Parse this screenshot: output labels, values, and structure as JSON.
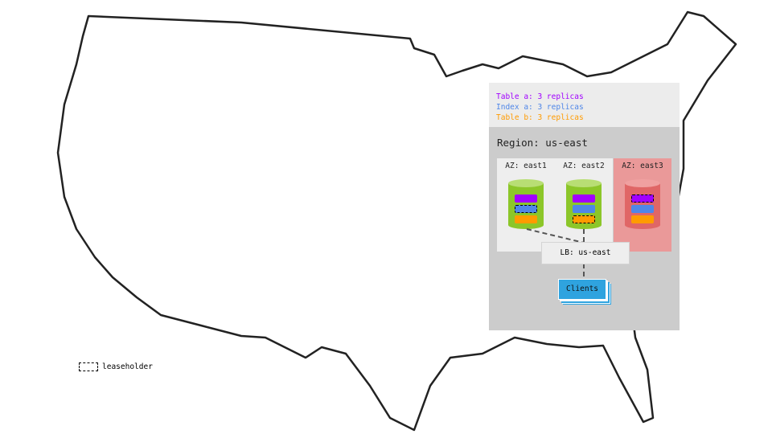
{
  "legend_top": [
    {
      "text": "Table a: 3 replicas",
      "color": "#a100ff"
    },
    {
      "text": "Index a: 3 replicas",
      "color": "#4f86e8"
    },
    {
      "text": "Table b: 3 replicas",
      "color": "#ff9b00"
    }
  ],
  "region": "Region: us-east",
  "azs": [
    {
      "label": "AZ: east1",
      "state": "healthy",
      "leaseholder": "Index a"
    },
    {
      "label": "AZ: east2",
      "state": "healthy",
      "leaseholder": "Table b"
    },
    {
      "label": "AZ: east3",
      "state": "failed",
      "leaseholder": "Table a"
    }
  ],
  "lb": "LB: us-east",
  "clients": "Clients",
  "legend_bottom": "leaseholder",
  "colors": {
    "healthy": "#8cc629",
    "failed": "#e06666",
    "failed_bg": "#ea9999",
    "table_a": "#a100ff",
    "index_a": "#4f86e8",
    "table_b": "#ff9b00",
    "clients": "#2fa3df"
  }
}
